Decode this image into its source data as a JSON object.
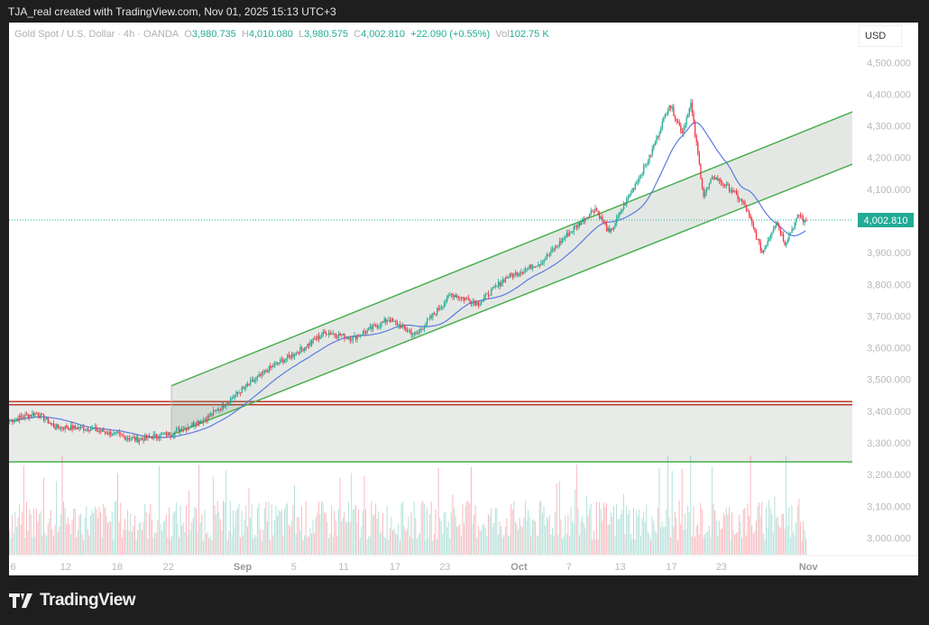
{
  "credit": "TJA_real created with TradingView.com, Nov 01, 2025 15:13 UTC+3",
  "legend": {
    "symbol": "Gold Spot / U.S. Dollar · 4h · OANDA",
    "o_label": "O",
    "o": "3,980.735",
    "h_label": "H",
    "h": "4,010.080",
    "l_label": "L",
    "l": "3,980.575",
    "c_label": "C",
    "c": "4,002.810",
    "change": "+22.090 (+0.55%)",
    "vol_label": "Vol",
    "vol": "102.75 K"
  },
  "currency": "USD",
  "logo": "TradingView",
  "colors": {
    "up": "#22ab94",
    "down": "#f23645",
    "ma": "#5b7be0",
    "channel": "#4caf50",
    "resistance": "#c0392b"
  },
  "chart_data": {
    "type": "candlestick",
    "title": "Gold Spot / U.S. Dollar · 4h · OANDA",
    "ylim": [
      2930,
      4560
    ],
    "y_ticks": [
      {
        "v": 4500,
        "t": "4,500.000"
      },
      {
        "v": 4400,
        "t": "4,400.000"
      },
      {
        "v": 4300,
        "t": "4,300.000"
      },
      {
        "v": 4200,
        "t": "4,200.000"
      },
      {
        "v": 4100,
        "t": "4,100.000"
      },
      {
        "v": 3900,
        "t": "3,900.000"
      },
      {
        "v": 3800,
        "t": "3,800.000"
      },
      {
        "v": 3700,
        "t": "3,700.000"
      },
      {
        "v": 3600,
        "t": "3,600.000"
      },
      {
        "v": 3500,
        "t": "3,500.000"
      },
      {
        "v": 3400,
        "t": "3,400.000"
      },
      {
        "v": 3300,
        "t": "3,300.000"
      },
      {
        "v": 3200,
        "t": "3,200.000"
      },
      {
        "v": 3100,
        "t": "3,100.000"
      },
      {
        "v": 3000,
        "t": "3,000.000"
      }
    ],
    "last_price": {
      "v": 4002.81,
      "t": "4,002.810"
    },
    "x_ticks": [
      {
        "bar": 1,
        "t": "6"
      },
      {
        "bar": 38,
        "t": "12"
      },
      {
        "bar": 74,
        "t": "18"
      },
      {
        "bar": 110,
        "t": "22"
      },
      {
        "bar": 162,
        "t": "Sep",
        "major": true
      },
      {
        "bar": 198,
        "t": "5"
      },
      {
        "bar": 233,
        "t": "11"
      },
      {
        "bar": 269,
        "t": "17"
      },
      {
        "bar": 304,
        "t": "23"
      },
      {
        "bar": 356,
        "t": "Oct",
        "major": true
      },
      {
        "bar": 391,
        "t": "7"
      },
      {
        "bar": 427,
        "t": "13"
      },
      {
        "bar": 463,
        "t": "17"
      },
      {
        "bar": 498,
        "t": "23"
      },
      {
        "bar": 559,
        "t": "Nov",
        "major": true
      }
    ],
    "bars": 560,
    "close_path": [
      [
        0,
        3370
      ],
      [
        19,
        3395
      ],
      [
        32,
        3350
      ],
      [
        57,
        3345
      ],
      [
        89,
        3310
      ],
      [
        114,
        3330
      ],
      [
        139,
        3380
      ],
      [
        161,
        3460
      ],
      [
        184,
        3540
      ],
      [
        203,
        3590
      ],
      [
        222,
        3650
      ],
      [
        241,
        3630
      ],
      [
        266,
        3690
      ],
      [
        285,
        3640
      ],
      [
        310,
        3770
      ],
      [
        329,
        3740
      ],
      [
        348,
        3820
      ],
      [
        373,
        3870
      ],
      [
        392,
        3960
      ],
      [
        411,
        4040
      ],
      [
        421,
        3960
      ],
      [
        437,
        4100
      ],
      [
        449,
        4200
      ],
      [
        463,
        4370
      ],
      [
        472,
        4280
      ],
      [
        478,
        4370
      ],
      [
        487,
        4080
      ],
      [
        494,
        4140
      ],
      [
        506,
        4100
      ],
      [
        516,
        4050
      ],
      [
        528,
        3900
      ],
      [
        538,
        4000
      ],
      [
        544,
        3930
      ],
      [
        554,
        4020
      ],
      [
        559,
        3990
      ]
    ],
    "channel": {
      "upper": [
        [
          114,
          3480
        ],
        [
          595,
          4350
        ]
      ],
      "lower": [
        [
          114,
          3325
        ],
        [
          595,
          4185
        ]
      ]
    },
    "zone": {
      "top": 3430,
      "top2": 3420,
      "bottom": 3240
    }
  }
}
